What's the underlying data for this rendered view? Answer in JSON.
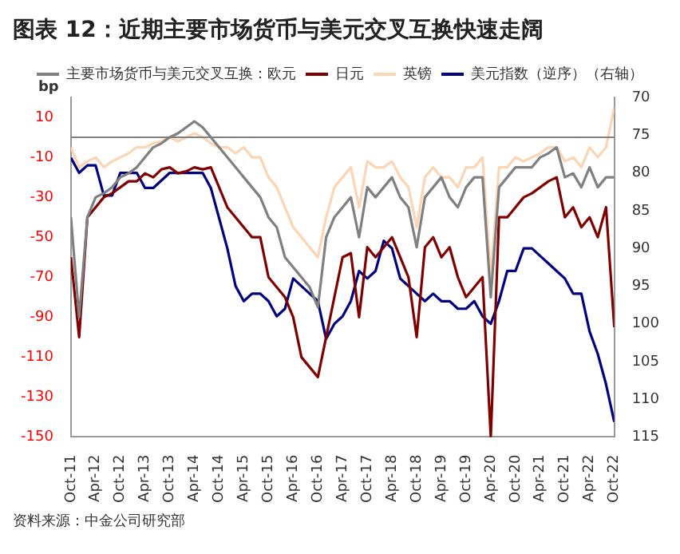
{
  "chart_data": {
    "type": "line",
    "title": "图表 12：近期主要市场货币与美元交叉互换快速走阔",
    "ylabel": "bp",
    "x": [
      "2011-10",
      "2011-12",
      "2012-02",
      "2012-04",
      "2012-06",
      "2012-08",
      "2012-10",
      "2012-12",
      "2013-02",
      "2013-04",
      "2013-06",
      "2013-08",
      "2013-10",
      "2013-12",
      "2014-02",
      "2014-04",
      "2014-06",
      "2014-08",
      "2014-10",
      "2014-12",
      "2015-02",
      "2015-04",
      "2015-06",
      "2015-08",
      "2015-10",
      "2015-12",
      "2016-02",
      "2016-04",
      "2016-06",
      "2016-08",
      "2016-10",
      "2016-12",
      "2017-02",
      "2017-04",
      "2017-06",
      "2017-08",
      "2017-10",
      "2017-12",
      "2018-02",
      "2018-04",
      "2018-06",
      "2018-08",
      "2018-10",
      "2018-12",
      "2019-02",
      "2019-04",
      "2019-06",
      "2019-08",
      "2019-10",
      "2019-12",
      "2020-02",
      "2020-04",
      "2020-06",
      "2020-08",
      "2020-10",
      "2020-12",
      "2021-02",
      "2021-04",
      "2021-06",
      "2021-08",
      "2021-10",
      "2021-12",
      "2022-02",
      "2022-04",
      "2022-06",
      "2022-08",
      "2022-10"
    ],
    "series": [
      {
        "name": "主要市场货币与美元交叉互换：欧元",
        "color": "#808080",
        "values": [
          -40,
          -90,
          -40,
          -30,
          -28,
          -25,
          -20,
          -18,
          -15,
          -10,
          -5,
          -3,
          0,
          2,
          5,
          8,
          5,
          0,
          -5,
          -10,
          -15,
          -20,
          -25,
          -30,
          -40,
          -45,
          -60,
          -65,
          -70,
          -75,
          -85,
          -50,
          -40,
          -35,
          -30,
          -50,
          -25,
          -30,
          -25,
          -20,
          -30,
          -35,
          -55,
          -30,
          -25,
          -20,
          -30,
          -35,
          -25,
          -20,
          -20,
          -80,
          -25,
          -20,
          -15,
          -15,
          -15,
          -10,
          -8,
          -5,
          -20,
          -18,
          -25,
          -15,
          -25,
          -20,
          -20
        ]
      },
      {
        "name": "日元",
        "color": "#800000",
        "values": [
          -60,
          -100,
          -40,
          -35,
          -30,
          -28,
          -25,
          -22,
          -22,
          -18,
          -20,
          -16,
          -15,
          -18,
          -17,
          -15,
          -16,
          -15,
          -25,
          -35,
          -40,
          -45,
          -50,
          -50,
          -70,
          -75,
          -80,
          -90,
          -110,
          -115,
          -120,
          -100,
          -80,
          -60,
          -58,
          -90,
          -55,
          -60,
          -55,
          -50,
          -60,
          -70,
          -100,
          -55,
          -50,
          -60,
          -55,
          -70,
          -80,
          -75,
          -70,
          -150,
          -40,
          -40,
          -35,
          -30,
          -28,
          -25,
          -22,
          -20,
          -40,
          -35,
          -45,
          -40,
          -50,
          -35,
          -95
        ]
      },
      {
        "name": "英镑",
        "color": "#fcd5b5",
        "values": [
          -5,
          -15,
          -12,
          -10,
          -15,
          -12,
          -10,
          -8,
          -5,
          -5,
          -3,
          -2,
          0,
          -2,
          0,
          2,
          0,
          -3,
          -5,
          -5,
          -8,
          -5,
          -10,
          -10,
          -20,
          -25,
          -35,
          -45,
          -50,
          -55,
          -60,
          -40,
          -25,
          -20,
          -15,
          -35,
          -12,
          -15,
          -15,
          -12,
          -20,
          -25,
          -45,
          -20,
          -15,
          -20,
          -20,
          -25,
          -15,
          -15,
          -10,
          -70,
          -15,
          -15,
          -10,
          -12,
          -10,
          -8,
          -5,
          -5,
          -12,
          -10,
          -15,
          -5,
          -10,
          -5,
          15
        ]
      },
      {
        "name": "美元指数（逆序）（右轴）",
        "color": "#000080",
        "axis": "y2",
        "values": [
          78,
          80,
          79,
          79,
          83,
          83,
          80,
          80,
          80,
          82,
          82,
          81,
          80,
          80,
          80,
          80,
          80,
          82,
          86,
          90,
          95,
          97,
          96,
          96,
          97,
          99,
          98,
          94,
          95,
          96,
          97,
          102,
          100,
          99,
          97,
          93,
          94,
          93,
          89,
          90,
          94,
          95,
          96,
          97,
          96,
          97,
          97,
          98,
          98,
          97,
          99,
          100,
          97,
          93,
          93,
          90,
          90,
          91,
          92,
          93,
          94,
          96,
          96,
          101,
          104,
          108,
          113
        ]
      }
    ],
    "xlim": [
      "2011-10",
      "2022-10"
    ],
    "xticks": [
      {
        "value": "2011-10",
        "label": "Oct-11"
      },
      {
        "value": "2012-04",
        "label": "Apr-12"
      },
      {
        "value": "2012-10",
        "label": "Oct-12"
      },
      {
        "value": "2013-04",
        "label": "Apr-13"
      },
      {
        "value": "2013-10",
        "label": "Oct-13"
      },
      {
        "value": "2014-04",
        "label": "Apr-14"
      },
      {
        "value": "2014-10",
        "label": "Oct-14"
      },
      {
        "value": "2015-04",
        "label": "Apr-15"
      },
      {
        "value": "2015-10",
        "label": "Oct-15"
      },
      {
        "value": "2016-04",
        "label": "Apr-16"
      },
      {
        "value": "2016-10",
        "label": "Oct-16"
      },
      {
        "value": "2017-04",
        "label": "Apr-17"
      },
      {
        "value": "2017-10",
        "label": "Oct-17"
      },
      {
        "value": "2018-04",
        "label": "Apr-18"
      },
      {
        "value": "2018-10",
        "label": "Oct-18"
      },
      {
        "value": "2019-04",
        "label": "Apr-19"
      },
      {
        "value": "2019-10",
        "label": "Oct-19"
      },
      {
        "value": "2020-04",
        "label": "Apr-20"
      },
      {
        "value": "2020-10",
        "label": "Oct-20"
      },
      {
        "value": "2021-04",
        "label": "Apr-21"
      },
      {
        "value": "2021-10",
        "label": "Oct-21"
      },
      {
        "value": "2022-04",
        "label": "Apr-22"
      },
      {
        "value": "2022-10",
        "label": "Oct-22"
      }
    ],
    "ylim": [
      -150,
      20
    ],
    "yticks": [
      -150,
      -130,
      -110,
      -90,
      -70,
      -50,
      -30,
      -10,
      10
    ],
    "y2lim": [
      115,
      70
    ],
    "y2ticks": [
      70,
      75,
      80,
      85,
      90,
      95,
      100,
      105,
      110,
      115
    ],
    "ref_lines": [
      {
        "axis": "y",
        "value": 0,
        "color": "#808080"
      }
    ],
    "legend": "top",
    "grid": false,
    "marker": "none",
    "line_style": "solid",
    "annotations": [
      "资料来源：中金公司研究部"
    ]
  }
}
